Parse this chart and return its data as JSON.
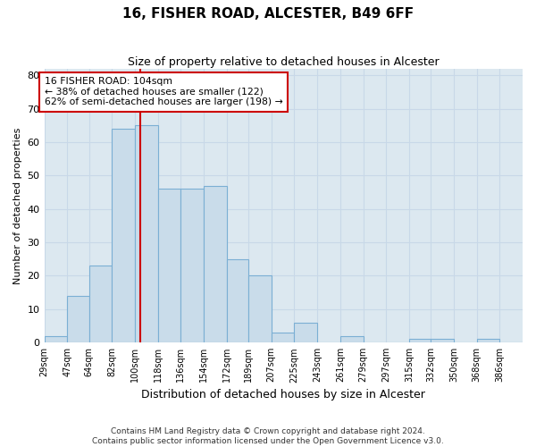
{
  "title": "16, FISHER ROAD, ALCESTER, B49 6FF",
  "subtitle": "Size of property relative to detached houses in Alcester",
  "xlabel": "Distribution of detached houses by size in Alcester",
  "ylabel": "Number of detached properties",
  "bin_labels": [
    "29sqm",
    "47sqm",
    "64sqm",
    "82sqm",
    "100sqm",
    "118sqm",
    "136sqm",
    "154sqm",
    "172sqm",
    "189sqm",
    "207sqm",
    "225sqm",
    "243sqm",
    "261sqm",
    "279sqm",
    "297sqm",
    "315sqm",
    "332sqm",
    "350sqm",
    "368sqm",
    "386sqm"
  ],
  "bin_edges": [
    29,
    47,
    64,
    82,
    100,
    118,
    136,
    154,
    172,
    189,
    207,
    225,
    243,
    261,
    279,
    297,
    315,
    332,
    350,
    368,
    386
  ],
  "bar_heights": [
    2,
    14,
    23,
    64,
    65,
    46,
    46,
    47,
    25,
    20,
    3,
    6,
    0,
    2,
    0,
    0,
    1,
    1,
    0,
    1,
    0
  ],
  "bar_color": "#c9dcea",
  "bar_edge_color": "#7bafd4",
  "property_line_x": 104,
  "property_line_color": "#cc0000",
  "annotation_text": "16 FISHER ROAD: 104sqm\n← 38% of detached houses are smaller (122)\n62% of semi-detached houses are larger (198) →",
  "annotation_box_facecolor": "#ffffff",
  "annotation_box_edgecolor": "#cc0000",
  "ylim_max": 82,
  "yticks": [
    0,
    10,
    20,
    30,
    40,
    50,
    60,
    70,
    80
  ],
  "grid_color": "#c8d8e8",
  "background_color": "#dce8f0",
  "footer_line1": "Contains HM Land Registry data © Crown copyright and database right 2024.",
  "footer_line2": "Contains public sector information licensed under the Open Government Licence v3.0."
}
